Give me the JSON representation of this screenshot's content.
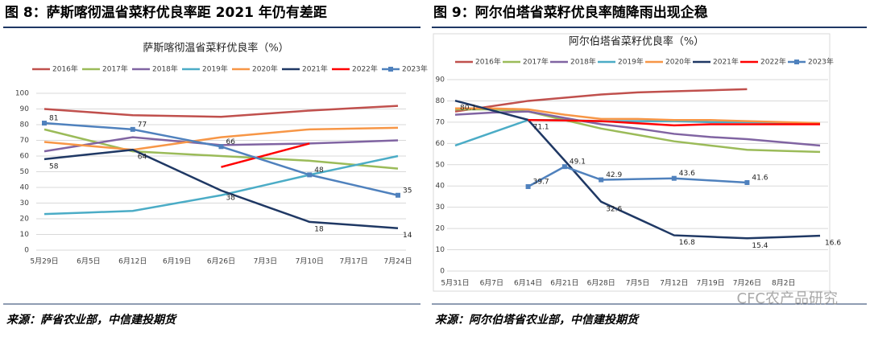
{
  "figures": [
    {
      "heading": "图 8：萨斯喀彻温省菜籽优良率距 2021 年仍有差距",
      "source": "来源：萨省农业部，中信建投期货"
    },
    {
      "heading": "图 9：阿尔伯塔省菜籽优良率随降雨出现企稳",
      "source": "来源：阿尔伯塔省农业部，中信建投期货"
    }
  ],
  "watermark": "CFC农产品研究",
  "chart_data": [
    {
      "type": "line",
      "title": "萨斯喀彻温省菜籽优良率（%）",
      "categories": [
        "5月29日",
        "6月5日",
        "6月12日",
        "6月19日",
        "6月26日",
        "7月3日",
        "7月10日",
        "7月17日",
        "7月24日"
      ],
      "ylim": [
        0,
        100
      ],
      "yticks": [
        0,
        10,
        20,
        30,
        40,
        50,
        60,
        70,
        80,
        90,
        100
      ],
      "grid": true,
      "series": [
        {
          "name": "2016年",
          "color": "#c0504d",
          "values": [
            90,
            88,
            86,
            85.5,
            85,
            87,
            89,
            90.5,
            92
          ]
        },
        {
          "name": "2017年",
          "color": "#9bbb59",
          "values": [
            77,
            70,
            63,
            61.5,
            60,
            58.5,
            57,
            54.5,
            52
          ]
        },
        {
          "name": "2018年",
          "color": "#8064a2",
          "values": [
            63,
            67.5,
            72,
            69.5,
            67,
            67.5,
            68,
            69,
            70
          ]
        },
        {
          "name": "2019年",
          "color": "#4bacc6",
          "values": [
            23,
            24,
            25,
            30,
            35,
            41.5,
            48,
            54,
            60
          ]
        },
        {
          "name": "2020年",
          "color": "#f79646",
          "values": [
            69,
            66.5,
            64,
            68,
            72,
            74.5,
            77,
            77.5,
            78
          ]
        },
        {
          "name": "2021年",
          "color": "#1f3864",
          "values": [
            58,
            61,
            64,
            51,
            38,
            28,
            18,
            16,
            14
          ],
          "value_labels": [
            "58",
            null,
            "64",
            null,
            "38",
            null,
            "18",
            null,
            "14"
          ]
        },
        {
          "name": "2022年",
          "color": "#ff0000",
          "values": [
            null,
            null,
            null,
            null,
            53,
            60.5,
            68,
            null,
            null
          ]
        },
        {
          "name": "2023年",
          "color": "#4f81bd",
          "marker": "square",
          "values": [
            81,
            79,
            77,
            71.5,
            66,
            57,
            48,
            41.5,
            35
          ],
          "value_labels": [
            "81",
            null,
            "77",
            null,
            "66",
            null,
            "48",
            null,
            "35"
          ]
        }
      ]
    },
    {
      "type": "line",
      "title": "阿尔伯塔省菜籽优良率（%）",
      "categories": [
        "5月31日",
        "6月7日",
        "6月14日",
        "6月21日",
        "6月28日",
        "7月5日",
        "7月12日",
        "7月19日",
        "7月26日",
        "8月2日",
        null
      ],
      "ylim": [
        0,
        90
      ],
      "yticks": [
        0,
        10,
        20,
        30,
        40,
        50,
        60,
        70,
        80,
        90
      ],
      "grid": true,
      "series": [
        {
          "name": "2016年",
          "color": "#c0504d",
          "values": [
            75,
            77.5,
            80,
            81.5,
            83,
            84,
            84.5,
            85,
            85.5,
            null,
            null
          ]
        },
        {
          "name": "2017年",
          "color": "#9bbb59",
          "values": [
            76,
            76,
            75,
            71,
            67,
            64,
            61,
            59,
            57,
            56.5,
            56
          ]
        },
        {
          "name": "2018年",
          "color": "#8064a2",
          "values": [
            73.5,
            74.5,
            75,
            72,
            69,
            67,
            64.5,
            63,
            62,
            60.5,
            59
          ]
        },
        {
          "name": "2019年",
          "color": "#4bacc6",
          "values": [
            59,
            65,
            71,
            71,
            70.5,
            70.5,
            70.5,
            70,
            70,
            69.8,
            69.5
          ]
        },
        {
          "name": "2020年",
          "color": "#f79646",
          "values": [
            76.5,
            76.5,
            76,
            73.5,
            71.5,
            71.5,
            71,
            71,
            70.5,
            70,
            69.5
          ]
        },
        {
          "name": "2021年",
          "color": "#1f3864",
          "values": [
            80.1,
            75.6,
            71.1,
            52,
            32.6,
            24.7,
            16.8,
            16.1,
            15.4,
            16,
            16.6
          ],
          "value_labels": [
            "80.1",
            null,
            "71.1",
            null,
            "32.6",
            null,
            "16.8",
            null,
            "15.4",
            null,
            "16.6"
          ]
        },
        {
          "name": "2022年",
          "color": "#ff0000",
          "values": [
            null,
            null,
            71,
            70.8,
            70.5,
            69.5,
            68.5,
            69,
            69,
            69,
            69
          ]
        },
        {
          "name": "2023年",
          "color": "#4f81bd",
          "marker": "square",
          "values": [
            null,
            null,
            39.7,
            49.1,
            42.9,
            43.25,
            43.6,
            42.6,
            41.6,
            null,
            null
          ],
          "value_labels": [
            null,
            null,
            "39.7",
            "49.1",
            "42.9",
            null,
            "43.6",
            null,
            "41.6",
            null,
            null
          ]
        }
      ]
    }
  ]
}
